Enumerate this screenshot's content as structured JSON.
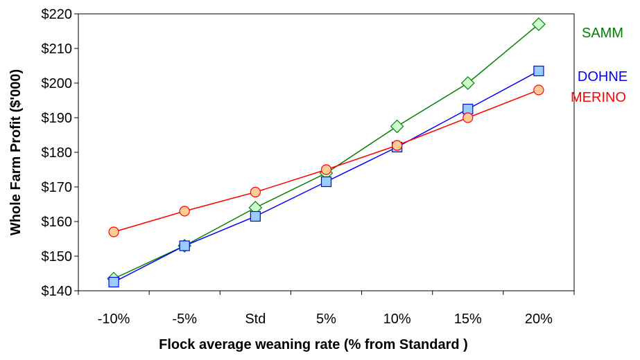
{
  "chart_data": {
    "type": "line",
    "title": "",
    "xlabel": "Flock average weaning rate  (% from Standard )",
    "ylabel": "Whole Farm Profit ($'000)",
    "categories": [
      "-10%",
      "-5%",
      "Std",
      "5%",
      "10%",
      "15%",
      "20%"
    ],
    "ylim": [
      140,
      220
    ],
    "yticks": [
      140,
      150,
      160,
      170,
      180,
      190,
      200,
      210,
      220
    ],
    "ytick_labels": [
      "$140",
      "$150",
      "$160",
      "$170",
      "$180",
      "$190",
      "$200",
      "$210",
      "$220"
    ],
    "grid": false,
    "legend": "inline labels at right end of each series",
    "series": [
      {
        "name": "SAMM",
        "color": "#008000",
        "marker": "diamond",
        "marker_fill": "#ccffcc",
        "values": [
          143.5,
          153,
          164,
          174,
          187.5,
          200,
          217
        ]
      },
      {
        "name": "DOHNE",
        "color": "#0000ff",
        "marker": "square",
        "marker_fill": "#99ccff",
        "values": [
          142.5,
          153,
          161.5,
          171.5,
          181.5,
          192.5,
          203.5
        ]
      },
      {
        "name": "MERINO",
        "color": "#ff0000",
        "marker": "circle",
        "marker_fill": "#ffcc99",
        "values": [
          157,
          163,
          168.5,
          175,
          182,
          190,
          198
        ]
      }
    ]
  }
}
